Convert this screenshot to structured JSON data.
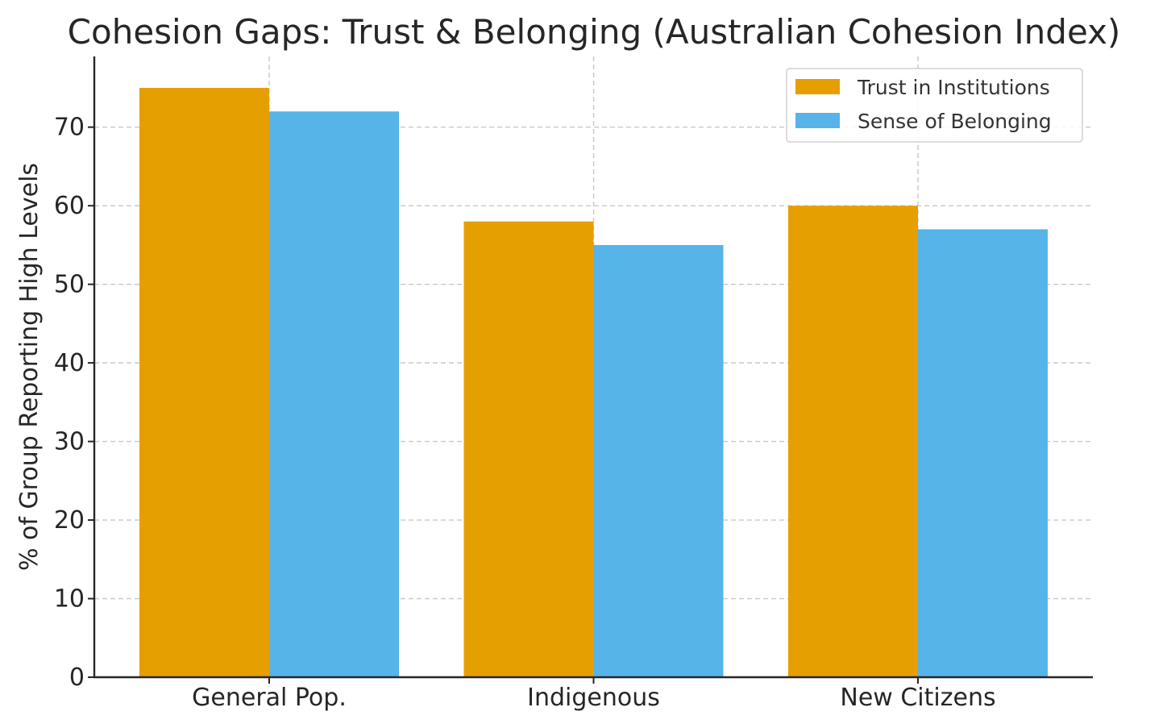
{
  "chart_data": {
    "type": "bar",
    "title": "Cohesion Gaps: Trust & Belonging (Australian Cohesion Index)",
    "xlabel": "",
    "ylabel": "% of Group Reporting High Levels",
    "categories": [
      "General Pop.",
      "Indigenous",
      "New Citizens"
    ],
    "series": [
      {
        "name": "Trust in Institutions",
        "values": [
          75,
          58,
          60
        ],
        "color": "#E69F00"
      },
      {
        "name": "Sense of Belonging",
        "values": [
          72,
          55,
          57
        ],
        "color": "#56B4E9"
      }
    ],
    "ylim": [
      0,
      79
    ],
    "yticks": [
      0,
      10,
      20,
      30,
      40,
      50,
      60,
      70
    ],
    "grid": true,
    "legend_position": "top-right"
  }
}
